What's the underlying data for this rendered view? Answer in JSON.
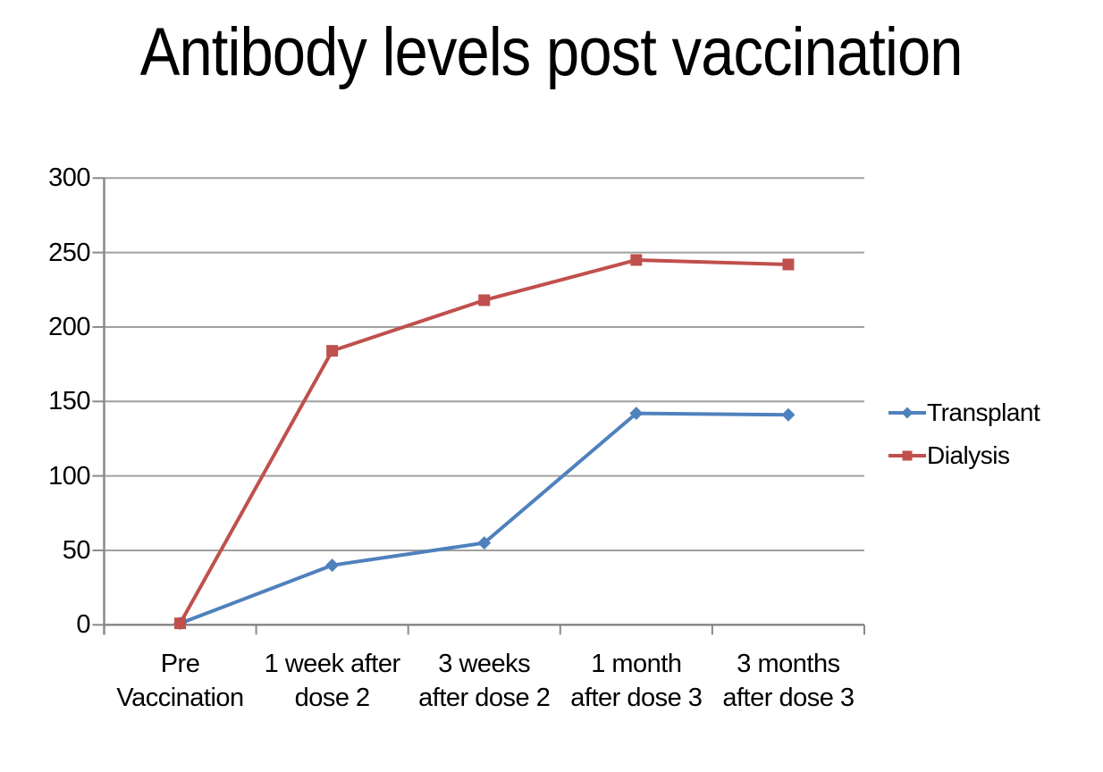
{
  "title": "Antibody levels post vaccination",
  "chart_data": {
    "type": "line",
    "title": "Antibody levels post vaccination",
    "categories": [
      "Pre Vaccination",
      "1 week after dose 2",
      "3 weeks after dose 2",
      "1 month after dose 3",
      "3 months after dose 3"
    ],
    "category_label_lines": [
      [
        "Pre",
        "Vaccination"
      ],
      [
        "1 week after",
        "dose 2"
      ],
      [
        "3 weeks",
        "after dose 2"
      ],
      [
        "1 month",
        "after dose 3"
      ],
      [
        "3 months",
        "after dose 3"
      ]
    ],
    "series": [
      {
        "name": "Transplant",
        "marker": "diamond",
        "color": "#4F81BD",
        "values": [
          1,
          40,
          55,
          142,
          141
        ]
      },
      {
        "name": "Dialysis",
        "marker": "square",
        "color": "#C0504D",
        "values": [
          1,
          184,
          218,
          245,
          242
        ]
      }
    ],
    "xlabel": "",
    "ylabel": "",
    "ylim": [
      0,
      300
    ],
    "yticks": [
      0,
      50,
      100,
      150,
      200,
      250,
      300
    ],
    "grid": true,
    "legend_position": "right-middle"
  },
  "colors": {
    "background": "#ffffff",
    "text": "#000000",
    "gridline": "#a0a0a0",
    "axis": "#8a8a8a",
    "transplant": "#4F81BD",
    "dialysis": "#C0504D"
  }
}
